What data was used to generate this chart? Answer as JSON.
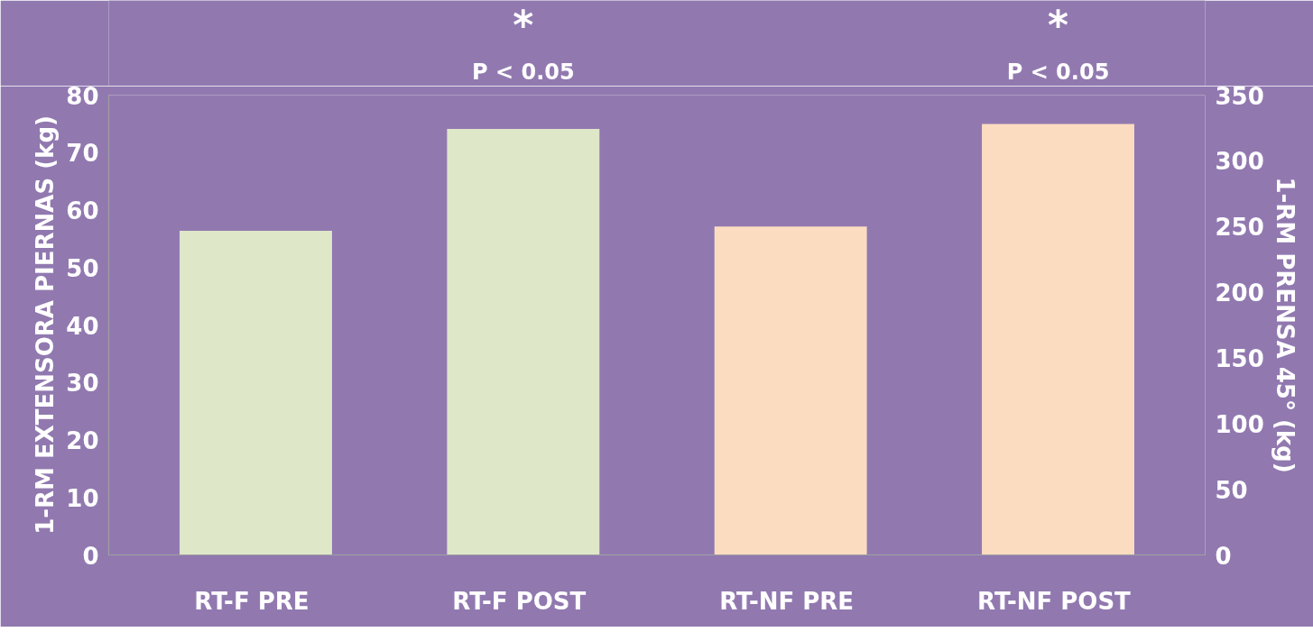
{
  "chart_data": {
    "type": "bar",
    "categories": [
      "RT-F  PRE",
      "RT-F  POST",
      "RT-NF  PRE",
      "RT-NF  POST"
    ],
    "ylabel": "1-RM EXTENSORA PIERNAS (kg)",
    "y2label": "1-RM PRENSA 45° (kg)",
    "series": [
      {
        "color": "#dfe7c9",
        "values": [
          56.4,
          74.1,
          null,
          null
        ]
      },
      {
        "color": "#fbdcc0",
        "axis": "y2",
        "values": [
          null,
          null,
          250,
          328
        ]
      }
    ],
    "ylim": [
      0,
      80
    ],
    "yticks": [
      0,
      10,
      20,
      30,
      40,
      50,
      60,
      70,
      80
    ],
    "y2lim": [
      0,
      350
    ],
    "y2ticks": [
      0,
      50,
      100,
      150,
      200,
      250,
      300,
      350
    ],
    "annotations": [
      "*",
      "P < 0.05",
      "*",
      "P < 0.05"
    ],
    "grid": false
  }
}
